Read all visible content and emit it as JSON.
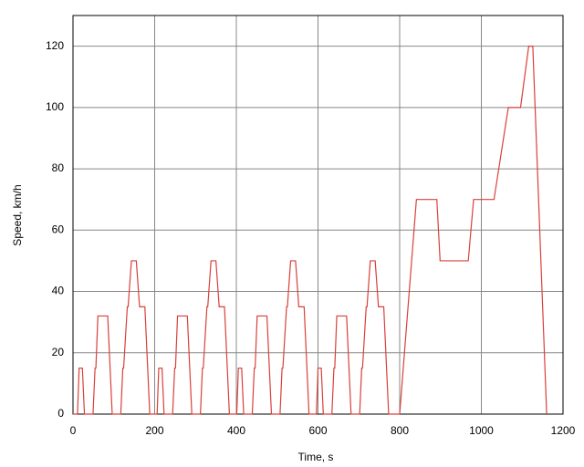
{
  "chart_data": {
    "type": "line",
    "xlabel": "Time, s",
    "ylabel": "Speed, km/h",
    "x": [
      0,
      11,
      15,
      23,
      28,
      49,
      54,
      56,
      61,
      85,
      96,
      117,
      122,
      124,
      133,
      135,
      143,
      155,
      163,
      176,
      188,
      195,
      206,
      210,
      218,
      223,
      244,
      249,
      251,
      256,
      280,
      291,
      312,
      317,
      319,
      328,
      330,
      338,
      350,
      358,
      371,
      383,
      390,
      401,
      405,
      413,
      418,
      439,
      444,
      446,
      451,
      475,
      486,
      507,
      512,
      514,
      523,
      525,
      533,
      545,
      553,
      566,
      578,
      585,
      596,
      600,
      608,
      613,
      634,
      639,
      641,
      646,
      670,
      681,
      702,
      707,
      709,
      718,
      720,
      728,
      740,
      748,
      761,
      773,
      780,
      800,
      841,
      891,
      899,
      968,
      981,
      1031,
      1066,
      1096,
      1116,
      1126,
      1160
    ],
    "series": [
      {
        "name": "Speed",
        "color": "#d9403a",
        "values": [
          0,
          0,
          15,
          15,
          0,
          0,
          15,
          15,
          32,
          32,
          0,
          0,
          15,
          15,
          35,
          35,
          50,
          50,
          35,
          35,
          0,
          0,
          0,
          15,
          15,
          0,
          0,
          15,
          15,
          32,
          32,
          0,
          0,
          15,
          15,
          35,
          35,
          50,
          50,
          35,
          35,
          0,
          0,
          0,
          15,
          15,
          0,
          0,
          15,
          15,
          32,
          32,
          0,
          0,
          15,
          15,
          35,
          35,
          50,
          50,
          35,
          35,
          0,
          0,
          0,
          15,
          15,
          0,
          0,
          15,
          15,
          32,
          32,
          0,
          0,
          15,
          15,
          35,
          35,
          50,
          50,
          35,
          35,
          0,
          0,
          0,
          70,
          70,
          50,
          50,
          70,
          70,
          100,
          100,
          120,
          120,
          0
        ]
      }
    ],
    "xlim": [
      0,
      1200
    ],
    "xticks": [
      0,
      200,
      400,
      600,
      800,
      1000,
      1200
    ],
    "ylim": [
      0,
      130
    ],
    "yticks": [
      0,
      20,
      40,
      60,
      80,
      100,
      120
    ],
    "grid": true
  }
}
